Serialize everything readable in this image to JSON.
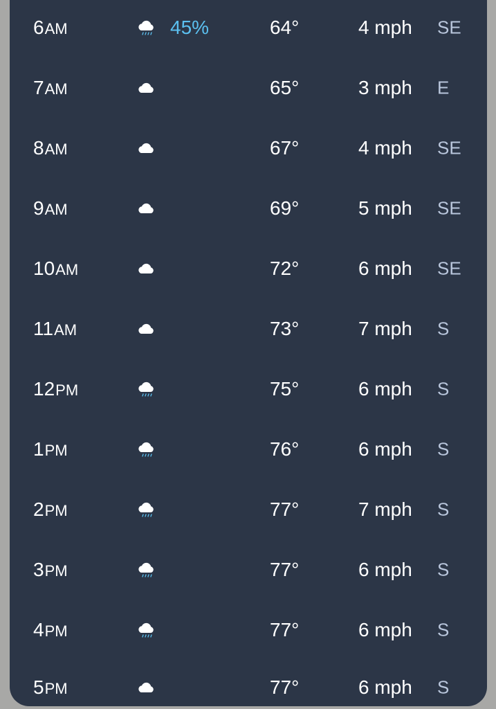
{
  "hourly": [
    {
      "hour": "6",
      "period": "AM",
      "icon": "rain-cloud-icon",
      "precip": "45%",
      "temp": "64°",
      "wind": "4 mph",
      "dir": "SE"
    },
    {
      "hour": "7",
      "period": "AM",
      "icon": "cloud-icon",
      "precip": "",
      "temp": "65°",
      "wind": "3 mph",
      "dir": "E"
    },
    {
      "hour": "8",
      "period": "AM",
      "icon": "cloud-icon",
      "precip": "",
      "temp": "67°",
      "wind": "4 mph",
      "dir": "SE"
    },
    {
      "hour": "9",
      "period": "AM",
      "icon": "cloud-icon",
      "precip": "",
      "temp": "69°",
      "wind": "5 mph",
      "dir": "SE"
    },
    {
      "hour": "10",
      "period": "AM",
      "icon": "cloud-icon",
      "precip": "",
      "temp": "72°",
      "wind": "6 mph",
      "dir": "SE"
    },
    {
      "hour": "11",
      "period": "AM",
      "icon": "cloud-icon",
      "precip": "",
      "temp": "73°",
      "wind": "7 mph",
      "dir": "S"
    },
    {
      "hour": "12",
      "period": "PM",
      "icon": "rain-cloud-icon",
      "precip": "",
      "temp": "75°",
      "wind": "6 mph",
      "dir": "S"
    },
    {
      "hour": "1",
      "period": "PM",
      "icon": "rain-cloud-icon",
      "precip": "",
      "temp": "76°",
      "wind": "6 mph",
      "dir": "S"
    },
    {
      "hour": "2",
      "period": "PM",
      "icon": "rain-cloud-icon",
      "precip": "",
      "temp": "77°",
      "wind": "7 mph",
      "dir": "S"
    },
    {
      "hour": "3",
      "period": "PM",
      "icon": "rain-cloud-icon",
      "precip": "",
      "temp": "77°",
      "wind": "6 mph",
      "dir": "S"
    },
    {
      "hour": "4",
      "period": "PM",
      "icon": "rain-cloud-icon",
      "precip": "",
      "temp": "77°",
      "wind": "6 mph",
      "dir": "S"
    },
    {
      "hour": "5",
      "period": "PM",
      "icon": "cloud-icon",
      "precip": "",
      "temp": "77°",
      "wind": "6 mph",
      "dir": "S"
    }
  ],
  "colors": {
    "panel": "#2c3647",
    "precip": "#5bc0f0",
    "direction": "#b9c6dc"
  }
}
